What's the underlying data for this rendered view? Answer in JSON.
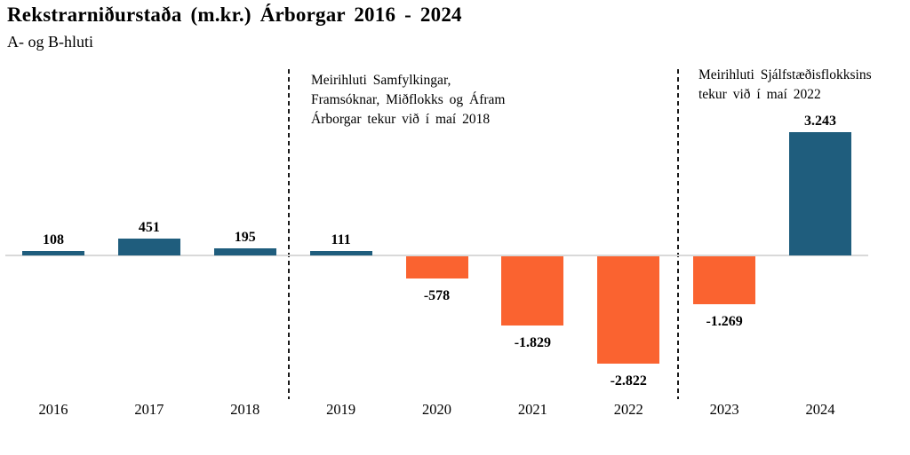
{
  "title": "Rekstrarniðurstaða (m.kr.) Árborgar 2016 - 2024",
  "subtitle": "A- og B-hluti",
  "annotations": [
    {
      "lines": [
        "Meirihluti Samfylkingar,",
        "Framsóknar, Miðflokks og Áfram",
        "Árborgar tekur við í maí 2018"
      ]
    },
    {
      "lines": [
        "Meirihluti Sjálfstæðisflokksins",
        "tekur við í maí 2022"
      ]
    }
  ],
  "colors": {
    "positive_bar": "#1f5d7d",
    "negative_bar": "#fa6330",
    "axis_line": "#d9d9d9",
    "divider_line": "#1a1a1a",
    "text": "#000000"
  },
  "chart_data": {
    "type": "bar",
    "title": "Rekstrarniðurstaða (m.kr.) Árborgar 2016 - 2024",
    "subtitle": "A- og B-hluti",
    "unit": "m.kr.",
    "categories": [
      "2016",
      "2017",
      "2018",
      "2019",
      "2020",
      "2021",
      "2022",
      "2023",
      "2024"
    ],
    "values": [
      108,
      451,
      195,
      111,
      -578,
      -1829,
      -2822,
      -1269,
      3243
    ],
    "value_labels": [
      "108",
      "451",
      "195",
      "111",
      "-578",
      "-1.829",
      "-2.822",
      "-1.269",
      "3.243"
    ],
    "xlabel": "",
    "ylabel": "",
    "ylim": [
      -3000,
      3400
    ],
    "grid": false,
    "legend": "none",
    "era_dividers": [
      {
        "between": [
          "2018",
          "2019"
        ],
        "annotation_index": 0
      },
      {
        "between": [
          "2022",
          "2023"
        ],
        "annotation_index": 1
      }
    ]
  }
}
